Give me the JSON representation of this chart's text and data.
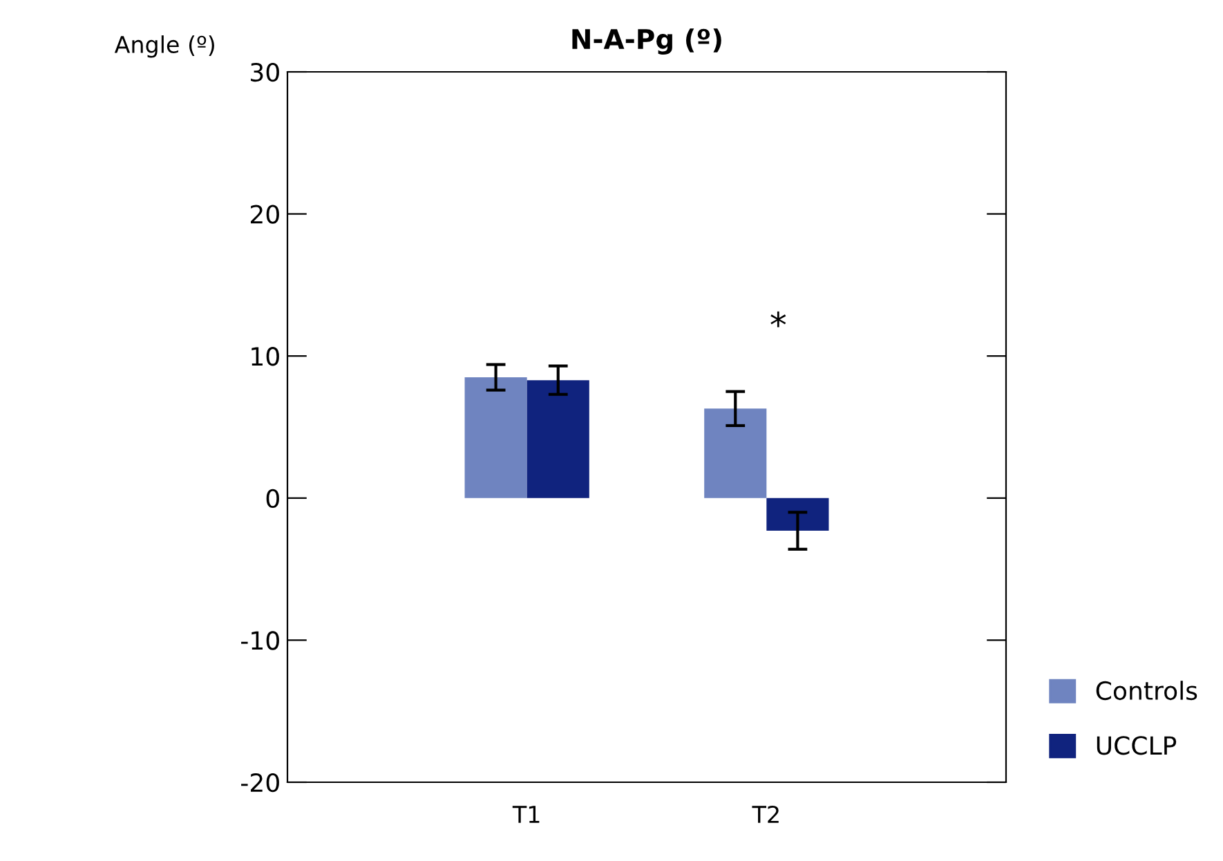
{
  "chart_data": {
    "type": "bar",
    "title": "N-A-Pg (º)",
    "ylabel": "Angle (º)",
    "categories": [
      "T1",
      "T2"
    ],
    "series": [
      {
        "name": "Controls",
        "color": "#6f84c0",
        "values": [
          8.5,
          6.3
        ],
        "errors": [
          0.9,
          1.2
        ]
      },
      {
        "name": "UCCLP",
        "color": "#10237e",
        "values": [
          8.3,
          -2.3
        ],
        "errors": [
          1.0,
          1.3
        ]
      }
    ],
    "ylim": [
      -20,
      30
    ],
    "yticks": [
      -20,
      -10,
      0,
      10,
      20,
      30
    ],
    "grid": false,
    "legend": "bottom right",
    "annotations": [
      "*"
    ]
  }
}
